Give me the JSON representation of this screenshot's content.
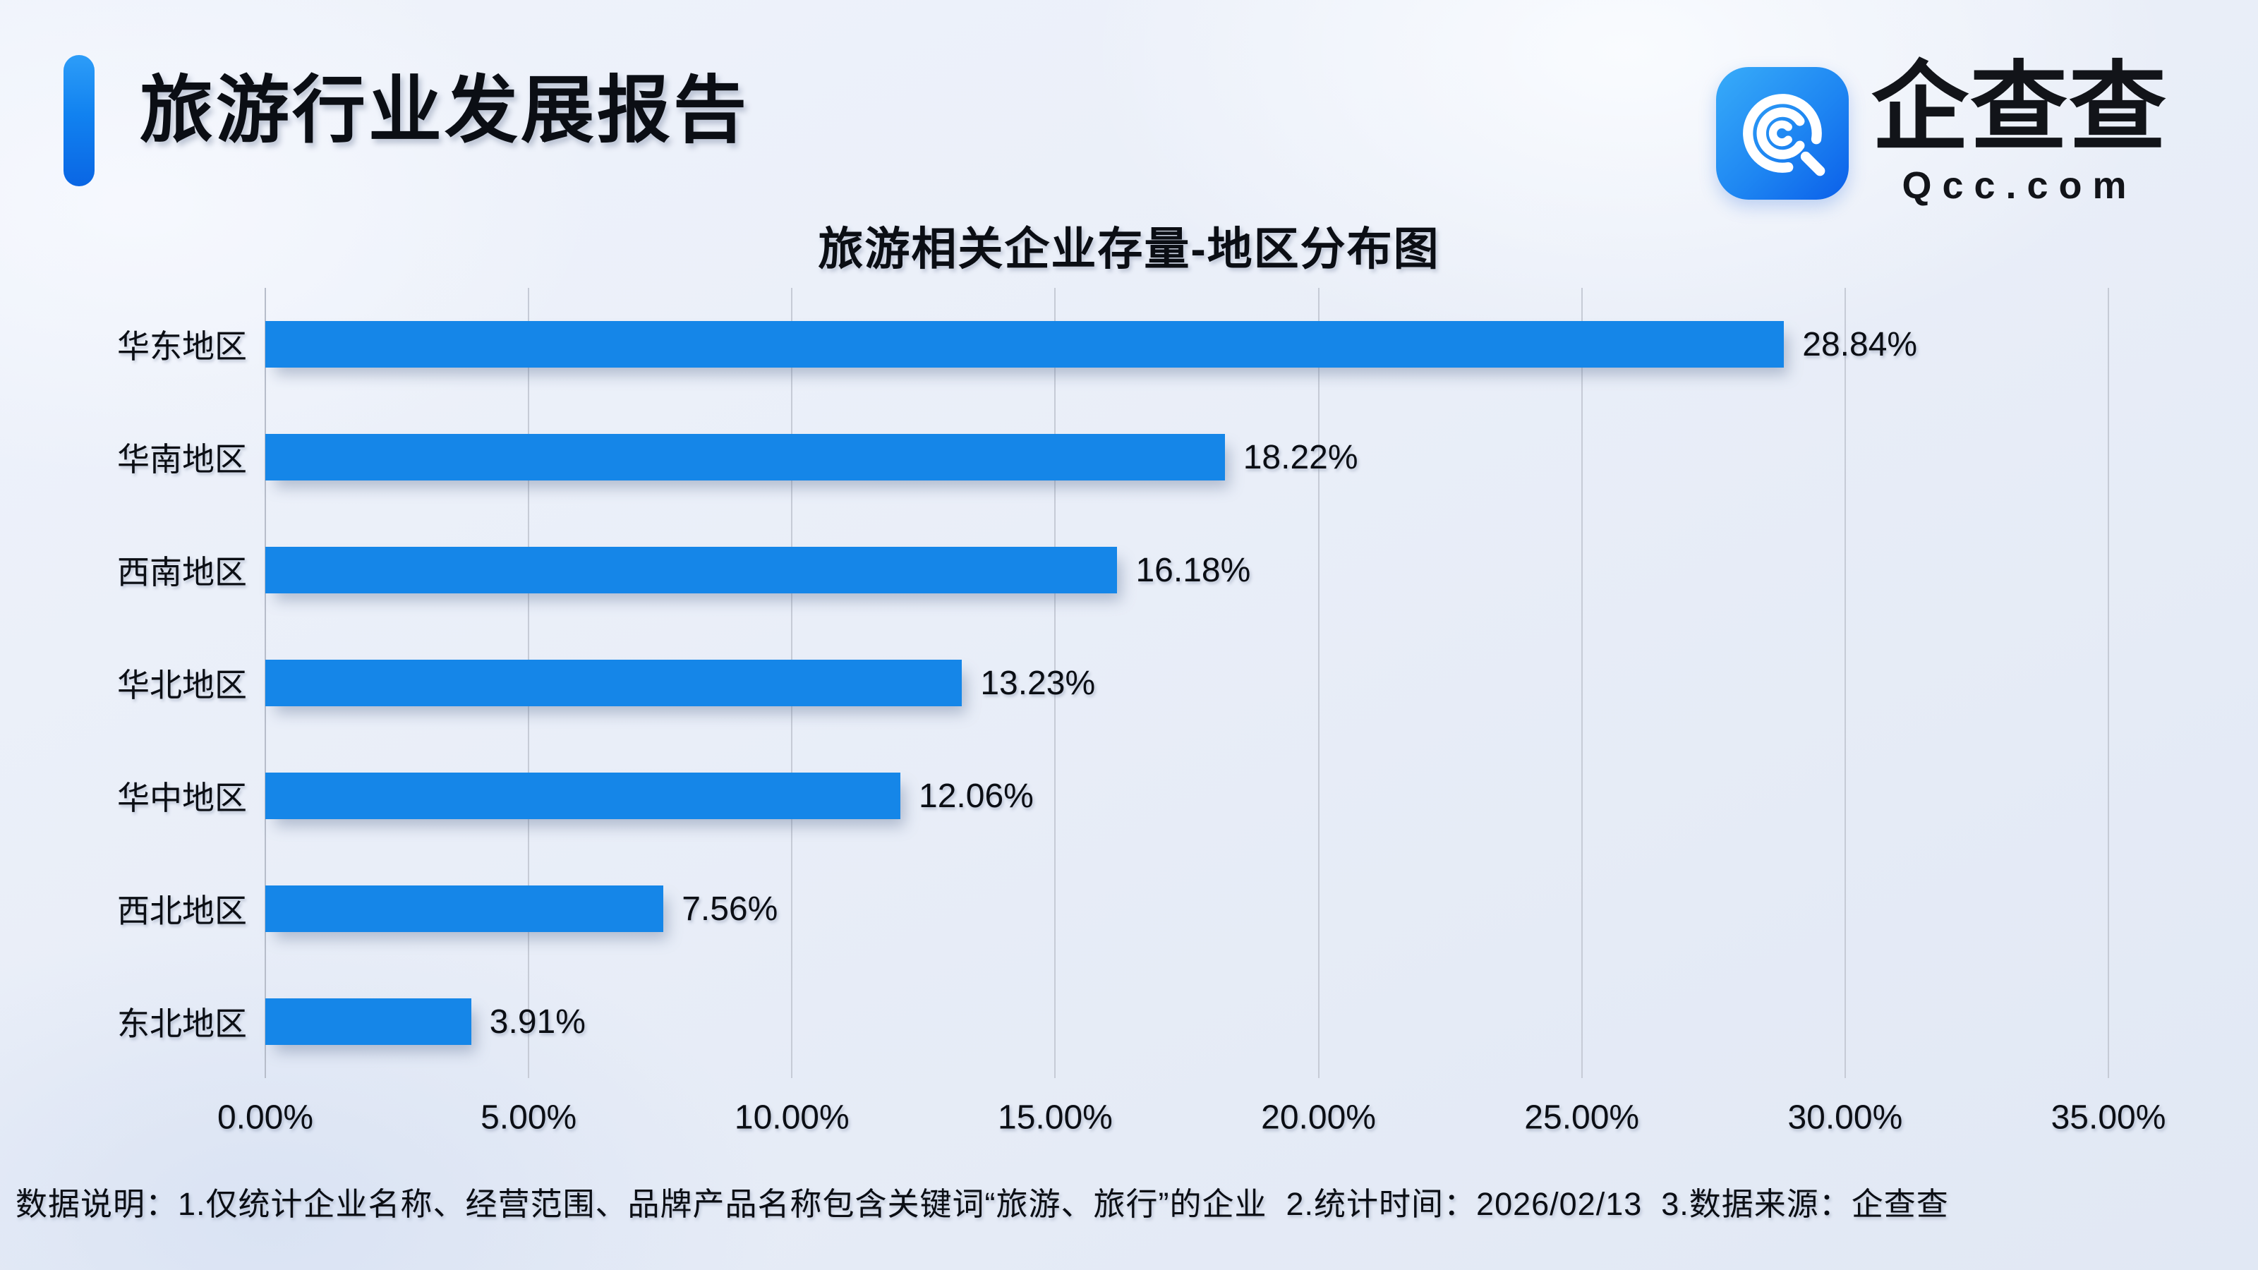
{
  "header": {
    "title": "旅游行业发展报告"
  },
  "logo": {
    "icon": "qcc-q-mark-icon",
    "wordmark": "企查查",
    "domain": "Qcc.com"
  },
  "chart_data": {
    "type": "bar",
    "orientation": "horizontal",
    "title": "旅游相关企业存量-地区分布图",
    "categories": [
      "华东地区",
      "华南地区",
      "西南地区",
      "华北地区",
      "华中地区",
      "西北地区",
      "东北地区"
    ],
    "values": [
      28.84,
      18.22,
      16.18,
      13.23,
      12.06,
      7.56,
      3.91
    ],
    "value_labels": [
      "28.84%",
      "18.22%",
      "16.18%",
      "13.23%",
      "12.06%",
      "7.56%",
      "3.91%"
    ],
    "xlabel": "",
    "ylabel": "",
    "xlim": [
      0,
      35
    ],
    "x_ticks": [
      "0.00%",
      "5.00%",
      "10.00%",
      "15.00%",
      "20.00%",
      "25.00%",
      "30.00%",
      "35.00%"
    ],
    "grid": true,
    "legend": "none",
    "bar_color": "#1586E8"
  },
  "colors": {
    "bar_blue": "#1586E8",
    "accent_gradient_top": "#2D9DF8",
    "accent_gradient_bottom": "#0A66E4",
    "logo_gradient_from": "#38ACF9",
    "logo_gradient_to": "#0B5FE9",
    "background": "#E9EEF8",
    "gridline": "#C6CBD6",
    "text": "#0B0E14"
  },
  "footer": {
    "note": "数据说明：1.仅统计企业名称、经营范围、品牌产品名称包含关键词“旅游、旅行”的企业  2.统计时间：2026/02/13  3.数据来源：企查查"
  }
}
